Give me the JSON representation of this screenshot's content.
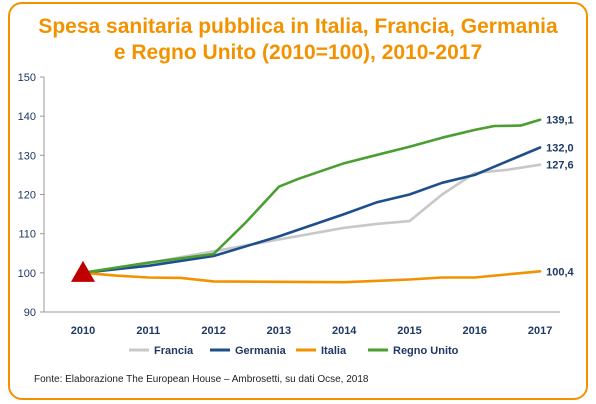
{
  "chart_data": {
    "type": "line",
    "title_line1": "Spesa sanitaria pubblica in Italia, Francia, Germania",
    "title_line2": "e Regno Unito (2010=100), 2010-2017",
    "x": [
      "2010",
      "2011",
      "2012",
      "2013",
      "2014",
      "2015",
      "2016",
      "2017"
    ],
    "ylim": [
      90,
      150
    ],
    "yticks": [
      90,
      100,
      110,
      120,
      130,
      140,
      150
    ],
    "grid": false,
    "legend_position": "bottom",
    "series": [
      {
        "name": "Francia",
        "color": "#c8c8c8",
        "points": [
          [
            2010,
            100
          ],
          [
            2011,
            102.5
          ],
          [
            2012,
            105.5
          ],
          [
            2013,
            108.5
          ],
          [
            2014,
            111.5
          ],
          [
            2014.5,
            112.5
          ],
          [
            2015,
            113.2
          ],
          [
            2015.5,
            120
          ],
          [
            2016,
            125.5
          ],
          [
            2016.5,
            126.3
          ],
          [
            2017,
            127.6
          ]
        ],
        "end_label": "127,6"
      },
      {
        "name": "Germania",
        "color": "#1f4e8c",
        "points": [
          [
            2010,
            100
          ],
          [
            2011,
            101.8
          ],
          [
            2012,
            104.3
          ],
          [
            2013,
            109.3
          ],
          [
            2014,
            115
          ],
          [
            2014.5,
            118
          ],
          [
            2015,
            120
          ],
          [
            2015.5,
            123
          ],
          [
            2016,
            125
          ],
          [
            2016.5,
            128.5
          ],
          [
            2017,
            132.0
          ]
        ],
        "end_label": "132,0"
      },
      {
        "name": "Italia",
        "color": "#f39200",
        "points": [
          [
            2010,
            100
          ],
          [
            2010.5,
            99.3
          ],
          [
            2011,
            98.8
          ],
          [
            2011.5,
            98.7
          ],
          [
            2012,
            97.8
          ],
          [
            2013,
            97.7
          ],
          [
            2014,
            97.6
          ],
          [
            2015,
            98.3
          ],
          [
            2015.5,
            98.8
          ],
          [
            2016,
            98.8
          ],
          [
            2017,
            100.4
          ]
        ],
        "end_label": "100,4"
      },
      {
        "name": "Regno Unito",
        "color": "#4a9e32",
        "points": [
          [
            2010,
            100
          ],
          [
            2011,
            102.6
          ],
          [
            2012,
            104.8
          ],
          [
            2012.5,
            113
          ],
          [
            2013,
            122
          ],
          [
            2013.3,
            124
          ],
          [
            2014,
            128
          ],
          [
            2015,
            132.2
          ],
          [
            2015.5,
            134.5
          ],
          [
            2016,
            136.5
          ],
          [
            2016.3,
            137.5
          ],
          [
            2016.7,
            137.6
          ],
          [
            2017,
            139.1
          ]
        ],
        "end_label": "139,1"
      }
    ],
    "marker": {
      "shape": "triangle",
      "color": "#c00000",
      "x": 2010,
      "y": 100
    }
  },
  "source": "Fonte: Elaborazione The European House – Ambrosetti, su dati Ocse, 2018"
}
